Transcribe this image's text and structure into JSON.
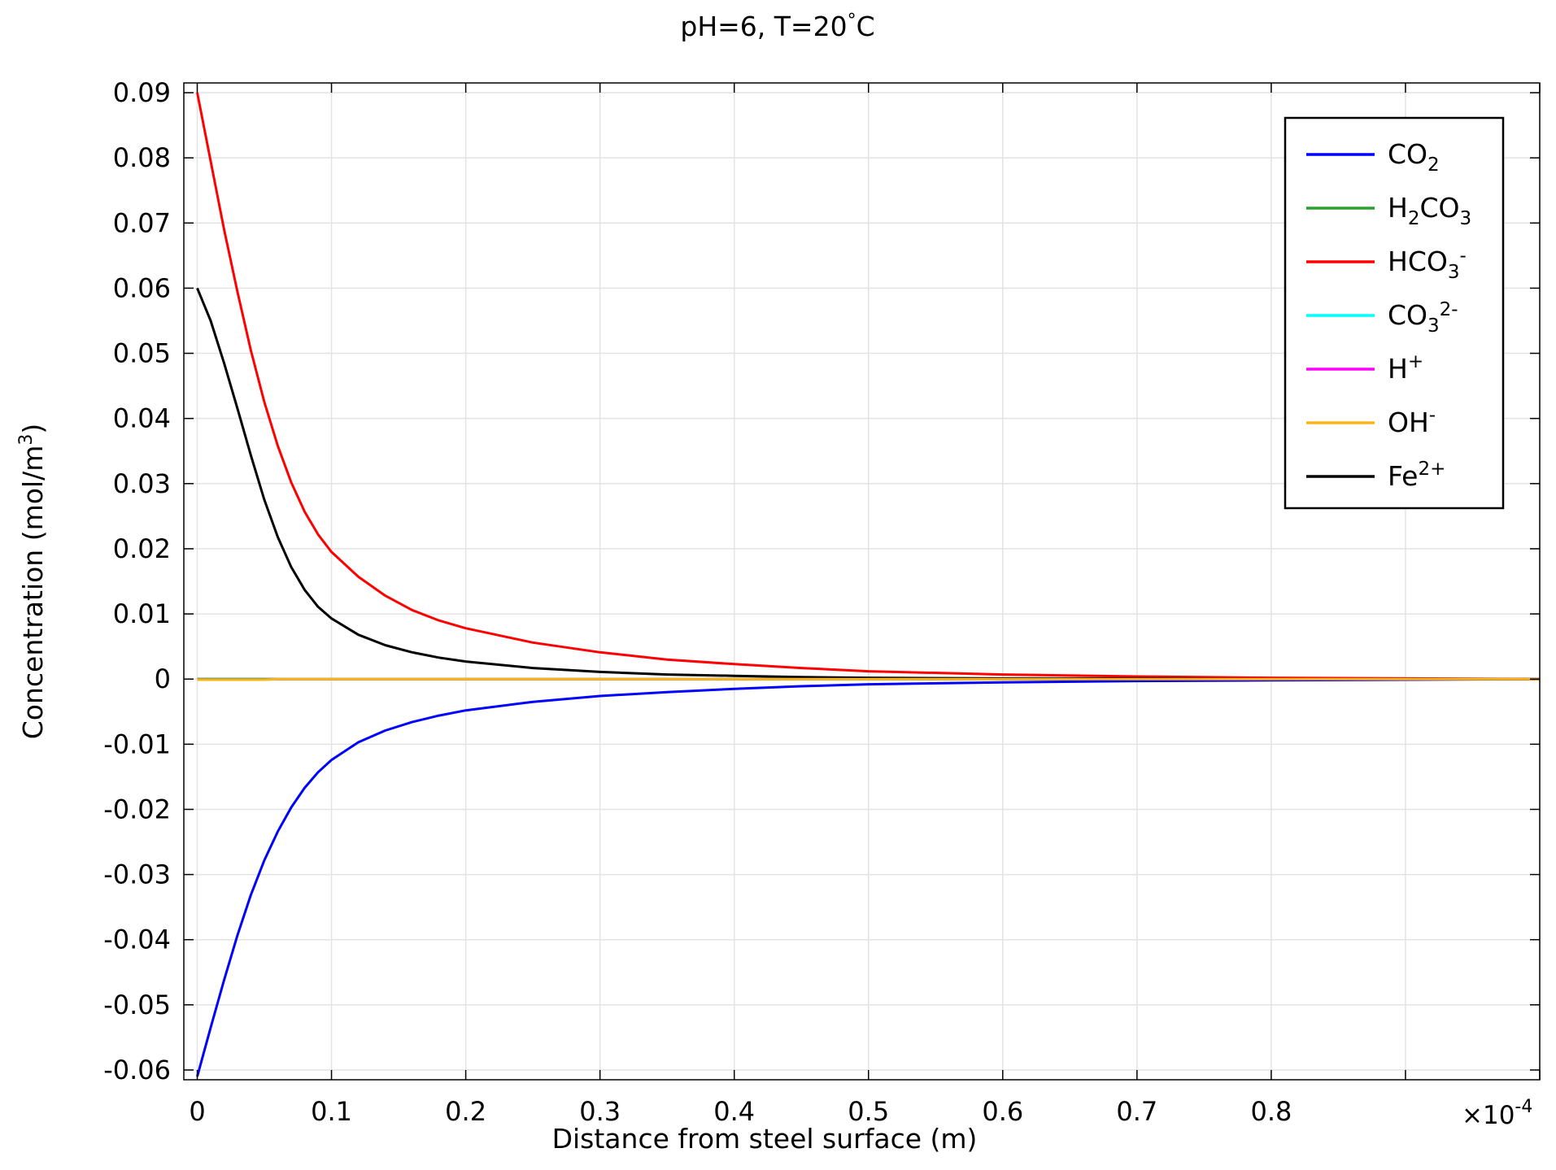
{
  "chart_data": {
    "type": "line",
    "title": "pH=6, T=20°C",
    "title_text": "pH=6, T=20",
    "title_degree": "°",
    "title_unit": "C",
    "xlabel": "Distance from steel surface (m)",
    "ylabel_prefix": "Concentration (mol/m",
    "ylabel_sup": "3",
    "ylabel_suffix": ")",
    "x_multiplier": {
      "base": "×10",
      "exponent": "-4"
    },
    "xlim": [
      -0.01,
      1.0
    ],
    "ylim": [
      -0.0615,
      0.0915
    ],
    "x_ticks": [
      0,
      0.1,
      0.2,
      0.3,
      0.4,
      0.5,
      0.6,
      0.7,
      0.8,
      0.9,
      1.0
    ],
    "x_tick_labels": [
      "0",
      "0.1",
      "0.2",
      "0.3",
      "0.4",
      "0.5",
      "0.6",
      "0.7",
      "0.8",
      "",
      ""
    ],
    "y_ticks": [
      0.09,
      0.08,
      0.07,
      0.06,
      0.05,
      0.04,
      0.03,
      0.02,
      0.01,
      0,
      -0.01,
      -0.02,
      -0.03,
      -0.04,
      -0.05,
      -0.06
    ],
    "y_tick_labels": [
      "0.09",
      "0.08",
      "0.07",
      "0.06",
      "0.05",
      "0.04",
      "0.03",
      "0.02",
      "0.01",
      "0",
      "-0.01",
      "-0.02",
      "-0.03",
      "-0.04",
      "-0.05",
      "-0.06"
    ],
    "grid": true,
    "legend_position": "top-right",
    "x": [
      0,
      0.01,
      0.02,
      0.03,
      0.04,
      0.05,
      0.06,
      0.07,
      0.08,
      0.09,
      0.1,
      0.12,
      0.14,
      0.16,
      0.18,
      0.2,
      0.25,
      0.3,
      0.35,
      0.4,
      0.45,
      0.5,
      0.6,
      0.7,
      0.8,
      0.9,
      1.0
    ],
    "series": [
      {
        "name": "CO2",
        "label": {
          "base": "CO",
          "sub": "2",
          "sup": ""
        },
        "color": "#0000ff",
        "values": [
          -0.061,
          -0.0535,
          -0.0462,
          -0.0393,
          -0.0331,
          -0.0278,
          -0.0234,
          -0.0197,
          -0.0167,
          -0.0143,
          -0.0124,
          -0.0097,
          -0.0079,
          -0.0066,
          -0.0056,
          -0.0048,
          -0.0035,
          -0.0026,
          -0.002,
          -0.0015,
          -0.0011,
          -0.0008,
          -0.0005,
          -0.0003,
          -0.0002,
          -0.0001,
          0
        ]
      },
      {
        "name": "H2CO3",
        "label": {
          "base": "H",
          "sub": "2",
          "tail": "CO",
          "sub2": "3",
          "sup": ""
        },
        "color": "#2ca02c",
        "values": [
          0,
          0,
          0,
          0,
          0,
          0,
          0,
          0,
          0,
          0,
          0,
          0,
          0,
          0,
          0,
          0,
          0,
          0,
          0,
          0,
          0,
          0,
          0,
          0,
          0,
          0,
          0
        ]
      },
      {
        "name": "HCO3-",
        "label": {
          "base": "HCO",
          "sub": "3",
          "sup": "-"
        },
        "color": "#ff0000",
        "values": [
          0.09,
          0.0795,
          0.069,
          0.0594,
          0.0504,
          0.0425,
          0.0358,
          0.0302,
          0.0257,
          0.0222,
          0.0195,
          0.0157,
          0.0128,
          0.0106,
          0.009,
          0.0078,
          0.0056,
          0.0041,
          0.003,
          0.0023,
          0.0017,
          0.0012,
          0.0007,
          0.0004,
          0.0002,
          0.0001,
          0
        ]
      },
      {
        "name": "CO32-",
        "label": {
          "base": "CO",
          "sub": "3",
          "sup": "2-"
        },
        "color": "#00ffff",
        "values": [
          0,
          0,
          0,
          0,
          0,
          0,
          0,
          0,
          0,
          0,
          0,
          0,
          0,
          0,
          0,
          0,
          0,
          0,
          0,
          0,
          0,
          0,
          0,
          0,
          0,
          0,
          0
        ]
      },
      {
        "name": "H+",
        "label": {
          "base": "H",
          "sub": "",
          "sup": "+"
        },
        "color": "#ff00ff",
        "values": [
          0,
          0,
          0,
          0,
          0,
          0,
          0,
          0,
          0,
          0,
          0,
          0,
          0,
          0,
          0,
          0,
          0,
          0,
          0,
          0,
          0,
          0,
          0,
          0,
          0,
          0,
          0
        ]
      },
      {
        "name": "OH-",
        "label": {
          "base": "OH",
          "sub": "",
          "sup": "-"
        },
        "color": "#ffb31a",
        "values": [
          -0.0001,
          -0.0001,
          -0.0001,
          -0.0001,
          -0.0001,
          -0.0001,
          0,
          0,
          0,
          0,
          0,
          0,
          0,
          0,
          0,
          0,
          0,
          0,
          0,
          0,
          0,
          0,
          0,
          0,
          0,
          0,
          0
        ]
      },
      {
        "name": "Fe2+",
        "label": {
          "base": "Fe",
          "sub": "",
          "sup": "2+"
        },
        "color": "#000000",
        "values": [
          0.06,
          0.055,
          0.0485,
          0.0415,
          0.0343,
          0.0275,
          0.0218,
          0.0172,
          0.0137,
          0.0111,
          0.0093,
          0.0068,
          0.0052,
          0.0041,
          0.0033,
          0.0027,
          0.0017,
          0.0011,
          0.0007,
          0.0005,
          0.0003,
          0.0002,
          0.0001,
          0.0001,
          0,
          0,
          0
        ]
      }
    ]
  }
}
